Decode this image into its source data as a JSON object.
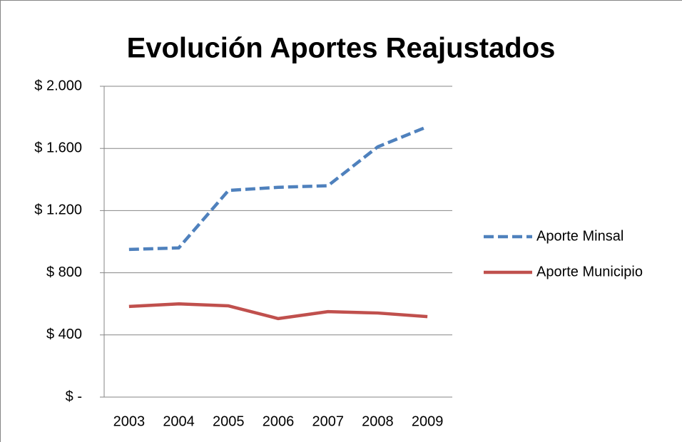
{
  "chart_data": {
    "type": "line",
    "title": "Evolución Aportes Reajustados",
    "categories": [
      "2003",
      "2004",
      "2005",
      "2006",
      "2007",
      "2008",
      "2009"
    ],
    "series": [
      {
        "name": "Aporte Minsal",
        "color": "#4f81bd",
        "dashed": true,
        "values": [
          950,
          960,
          1330,
          1350,
          1360,
          1610,
          1740
        ]
      },
      {
        "name": "Aporte Municipio",
        "color": "#c0504d",
        "dashed": false,
        "values": [
          583,
          600,
          587,
          505,
          550,
          541,
          518
        ]
      }
    ],
    "ylim": [
      0,
      2000
    ],
    "yticks": [
      {
        "value": 0,
        "label": "$ -"
      },
      {
        "value": 400,
        "label": "$ 400"
      },
      {
        "value": 800,
        "label": "$ 800"
      },
      {
        "value": 1200,
        "label": "$ 1.200"
      },
      {
        "value": 1600,
        "label": "$ 1.600"
      },
      {
        "value": 2000,
        "label": "$ 2.000"
      }
    ],
    "grid": true,
    "legend": "right"
  }
}
